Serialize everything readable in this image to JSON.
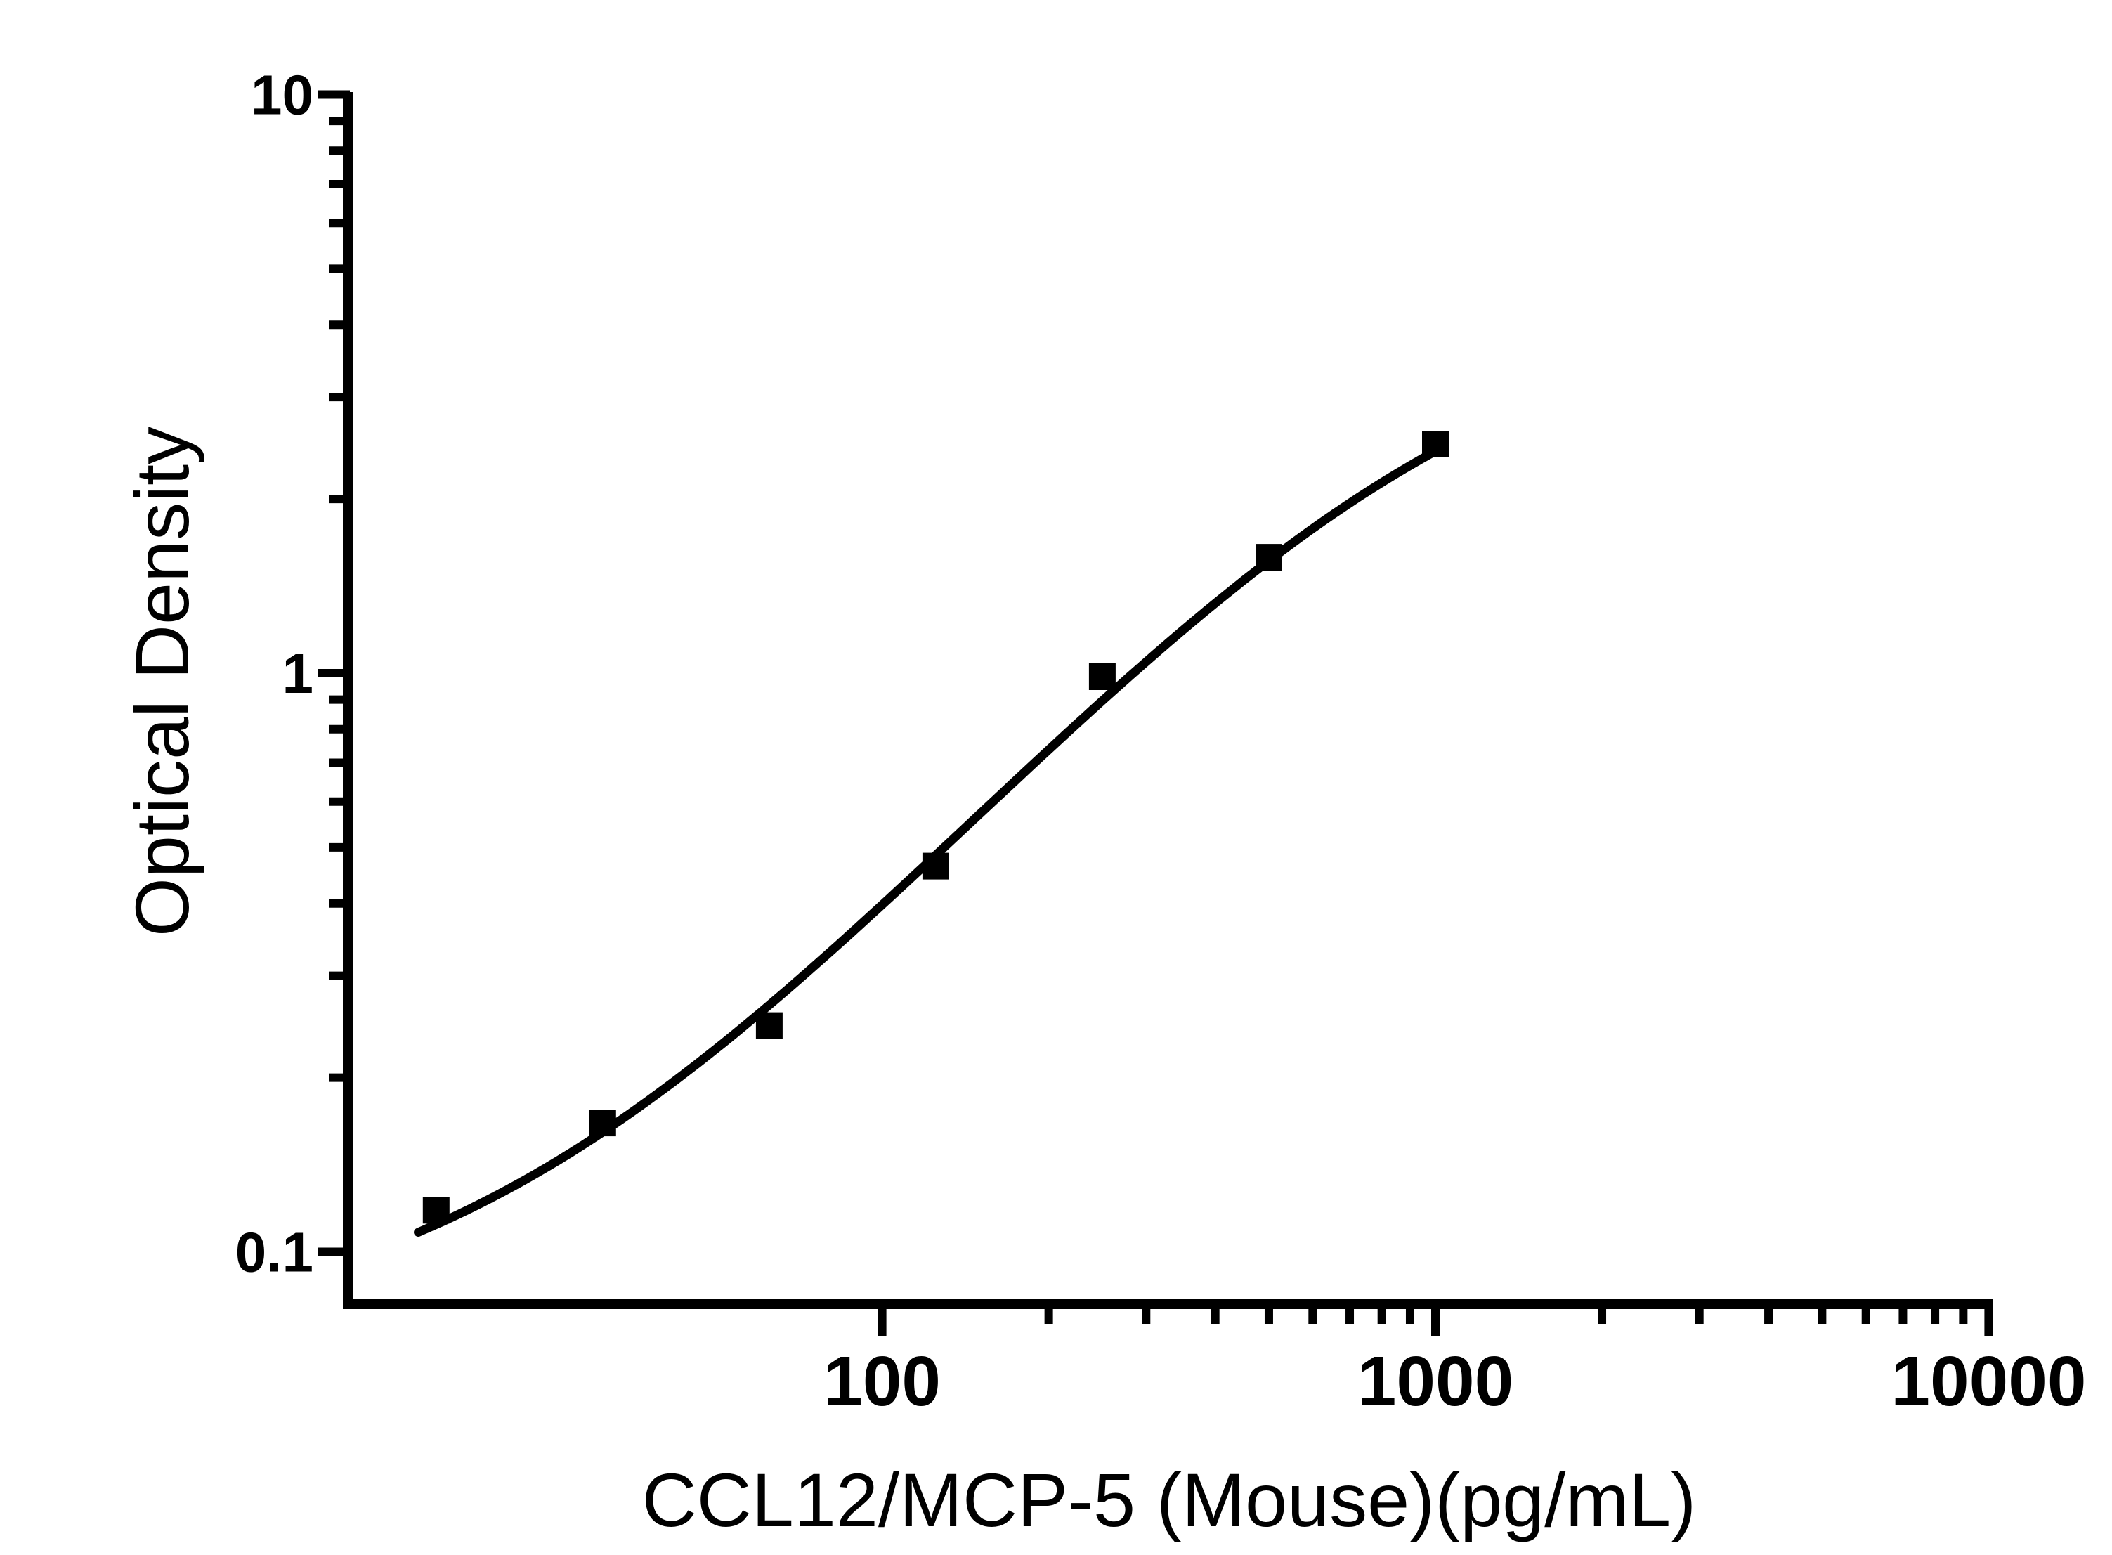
{
  "chart_data": {
    "type": "scatter",
    "title": "",
    "xlabel": "CCL12/MCP-5 (Mouse)(pg/mL)",
    "ylabel": "Optical Density",
    "x_scale": "log",
    "y_scale": "log",
    "xlim": [
      11,
      10300
    ],
    "ylim": [
      0.082,
      10
    ],
    "grid": false,
    "legend": null,
    "marker_color": "#000000",
    "curve_color": "#000000",
    "background_color": "#ffffff",
    "x_axis": {
      "major_ticks": [
        100,
        1000,
        10000
      ],
      "major_labels": [
        "100",
        "1000",
        "10000"
      ],
      "minor_ticks": [
        200,
        300,
        400,
        500,
        600,
        700,
        800,
        900,
        2000,
        3000,
        4000,
        5000,
        6000,
        7000,
        8000,
        9000
      ]
    },
    "y_axis": {
      "major_ticks": [
        0.1,
        1,
        10
      ],
      "major_labels": [
        "0.1",
        "1",
        "10"
      ],
      "minor_ticks": [
        0.2,
        0.3,
        0.4,
        0.5,
        0.6,
        0.7,
        0.8,
        0.9,
        2,
        3,
        4,
        5,
        6,
        7,
        8,
        9
      ]
    },
    "series": [
      {
        "name": "standard-curve-points",
        "marker": "square",
        "x": [
          15.625,
          31.25,
          62.5,
          125,
          250,
          500,
          1000
        ],
        "y": [
          0.118,
          0.167,
          0.246,
          0.464,
          0.986,
          1.586,
          2.488
        ]
      }
    ],
    "fit": {
      "model": "4PL",
      "A": 0.07,
      "B": 1.15,
      "C": 900,
      "D": 4.5,
      "x_start": 14.5,
      "x_end": 1000
    }
  }
}
